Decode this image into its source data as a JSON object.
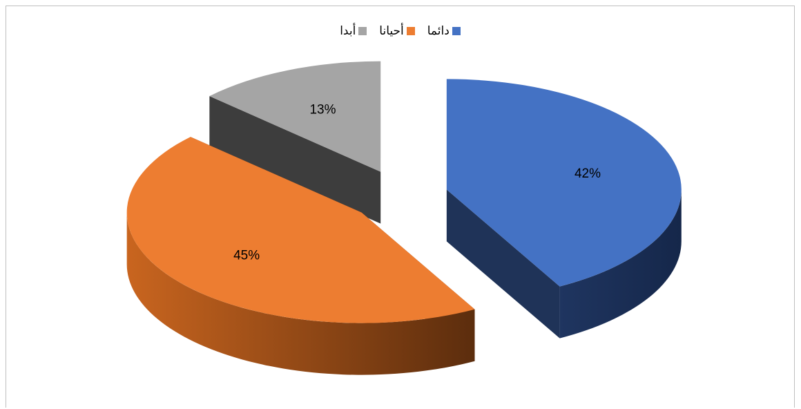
{
  "chart_data": {
    "type": "pie",
    "title": "",
    "legend_position": "top",
    "slices": [
      {
        "name": "دائما",
        "value": 42,
        "label": "42%",
        "color": "#4472c4"
      },
      {
        "name": "أحيانا",
        "value": 45,
        "label": "45%",
        "color": "#ed7d31"
      },
      {
        "name": "أبدا",
        "value": 13,
        "label": "13%",
        "color": "#a5a5a5"
      }
    ]
  }
}
